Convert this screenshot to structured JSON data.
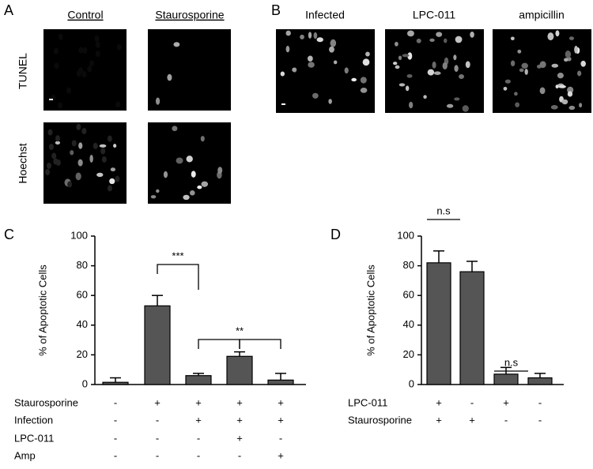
{
  "panels": {
    "A": {
      "label": "A",
      "columns": [
        "Control",
        "Staurosporine"
      ],
      "rows": [
        "TUNEL",
        "Hoechst"
      ]
    },
    "B": {
      "label": "B",
      "columns": [
        "Infected",
        "LPC-011",
        "ampicillin"
      ]
    }
  },
  "chart_data": [
    {
      "type": "bar",
      "panel_label": "C",
      "y_label": "% of Apoptotic Cells",
      "values": [
        1.5,
        53,
        6,
        19,
        3
      ],
      "errors": [
        3,
        7,
        1.5,
        3,
        4.5
      ],
      "color": "#555555",
      "ylim": [
        0,
        100
      ],
      "yticks": [
        0,
        20,
        40,
        60,
        80,
        100
      ],
      "conditions": [
        {
          "name": "Staurosporine",
          "marks": [
            "-",
            "+",
            "+",
            "+",
            "+"
          ]
        },
        {
          "name": "Infection",
          "marks": [
            "-",
            "-",
            "+",
            "+",
            "+"
          ]
        },
        {
          "name": "LPC-011",
          "marks": [
            "-",
            "-",
            "-",
            "+",
            "-"
          ]
        },
        {
          "name": "Amp",
          "marks": [
            "-",
            "-",
            "-",
            "-",
            "+"
          ]
        }
      ],
      "annotations": [
        "***",
        "**"
      ]
    },
    {
      "type": "bar",
      "panel_label": "D",
      "y_label": "% of Apoptotic Cells",
      "values": [
        82,
        76,
        7,
        4.5
      ],
      "errors": [
        8,
        7,
        4.5,
        3
      ],
      "color": "#555555",
      "ylim": [
        0,
        100
      ],
      "yticks": [
        0,
        20,
        40,
        60,
        80,
        100
      ],
      "conditions": [
        {
          "name": "LPC-011",
          "marks": [
            "+",
            "-",
            "+",
            "-"
          ]
        },
        {
          "name": "Staurosporine",
          "marks": [
            "+",
            "+",
            "-",
            "-"
          ]
        }
      ],
      "annotations": [
        "n.s",
        "n.s"
      ]
    }
  ]
}
